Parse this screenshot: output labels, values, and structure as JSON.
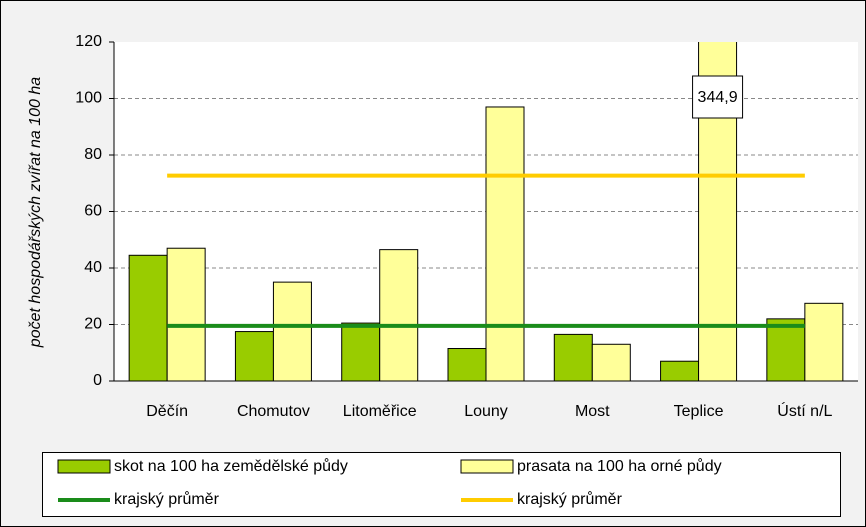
{
  "chart_data": {
    "type": "bar",
    "y_label": "počet hospodářských zvířat na 100 ha",
    "categories": [
      "Děčín",
      "Chomutov",
      "Litoměřice",
      "Louny",
      "Most",
      "Teplice",
      "Ústí n/L"
    ],
    "series": [
      {
        "name": "skot na 100 ha zemědělské půdy",
        "color": "#99cc00",
        "values": [
          44.5,
          17.5,
          20.5,
          11.5,
          16.5,
          7,
          22
        ]
      },
      {
        "name": "prasata na 100 ha orné půdy",
        "color": "#ffff99",
        "values": [
          47,
          35,
          46.5,
          97,
          13,
          344.9,
          27.5
        ],
        "value_labels": [
          null,
          null,
          null,
          null,
          null,
          "344,9",
          null
        ]
      }
    ],
    "averages": [
      {
        "name": "krajský průměr",
        "color": "#1a8c1a",
        "value": 19.5
      },
      {
        "name": "krajský průměr",
        "color": "#ffcc00",
        "value": 72.7
      }
    ],
    "ylim": [
      0,
      120
    ],
    "yticks": [
      0,
      20,
      40,
      60,
      80,
      100,
      120
    ],
    "grid": true
  }
}
